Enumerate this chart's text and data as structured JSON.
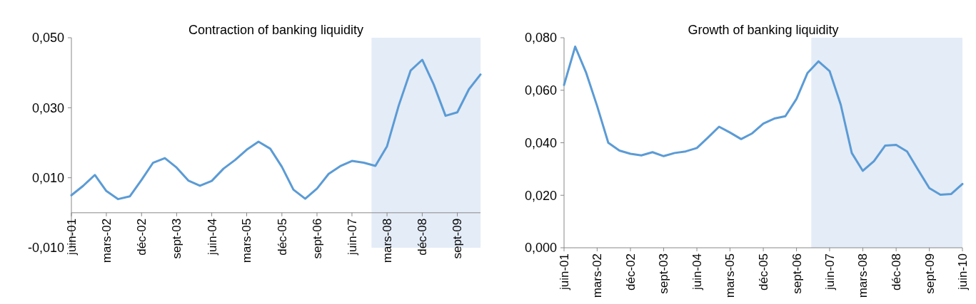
{
  "chart_data": [
    {
      "type": "line",
      "title": "Contraction of banking liquidity",
      "color": "#5b9bd5",
      "x": [
        "2001-06",
        "2001-09",
        "2001-12",
        "2002-03",
        "2002-06",
        "2002-09",
        "2002-12",
        "2003-03",
        "2003-06",
        "2003-09",
        "2003-12",
        "2004-03",
        "2004-06",
        "2004-09",
        "2004-12",
        "2005-03",
        "2005-06",
        "2005-09",
        "2005-12",
        "2006-03",
        "2006-06",
        "2006-09",
        "2006-12",
        "2007-03",
        "2007-06",
        "2007-09",
        "2007-12",
        "2008-03",
        "2008-06",
        "2008-09",
        "2008-12",
        "2009-03",
        "2009-06",
        "2009-09",
        "2009-12",
        "2010-03"
      ],
      "values": [
        0.005,
        0.0077,
        0.0108,
        0.0062,
        0.0039,
        0.0047,
        0.0094,
        0.0143,
        0.0156,
        0.0129,
        0.0092,
        0.0077,
        0.0091,
        0.0126,
        0.0151,
        0.018,
        0.0203,
        0.0183,
        0.0131,
        0.0066,
        0.004,
        0.0069,
        0.0111,
        0.0133,
        0.0148,
        0.0143,
        0.0134,
        0.019,
        0.0307,
        0.0406,
        0.0437,
        0.0366,
        0.0277,
        0.0287,
        0.0353,
        0.0395
      ],
      "xlim": [
        "2001-06",
        "2010-03"
      ],
      "xticks": [
        {
          "value": "2001-06",
          "label": "juin-01"
        },
        {
          "value": "2002-03",
          "label": "mars-02"
        },
        {
          "value": "2002-12",
          "label": "déc-02"
        },
        {
          "value": "2003-09",
          "label": "sept-03"
        },
        {
          "value": "2004-06",
          "label": "juin-04"
        },
        {
          "value": "2005-03",
          "label": "mars-05"
        },
        {
          "value": "2005-12",
          "label": "déc-05"
        },
        {
          "value": "2006-09",
          "label": "sept-06"
        },
        {
          "value": "2007-06",
          "label": "juin-07"
        },
        {
          "value": "2008-03",
          "label": "mars-08"
        },
        {
          "value": "2008-12",
          "label": "déc-08"
        },
        {
          "value": "2009-09",
          "label": "sept-09"
        }
      ],
      "ylim": [
        -0.01,
        0.05
      ],
      "yticks": [
        {
          "value": -0.01,
          "label": "-0,010"
        },
        {
          "value": 0.01,
          "label": "0,010"
        },
        {
          "value": 0.03,
          "label": "0,030"
        },
        {
          "value": 0.05,
          "label": "0,050"
        }
      ],
      "bands": [
        {
          "axis": "x",
          "from": "2007-11",
          "to": "2010-03",
          "color": "#e4ecf7"
        }
      ]
    },
    {
      "type": "line",
      "title": "Growth of banking liquidity",
      "color": "#5b9bd5",
      "x": [
        "2001-06",
        "2001-09",
        "2001-12",
        "2002-03",
        "2002-06",
        "2002-09",
        "2002-12",
        "2003-03",
        "2003-06",
        "2003-09",
        "2003-12",
        "2004-03",
        "2004-06",
        "2004-09",
        "2004-12",
        "2005-03",
        "2005-06",
        "2005-09",
        "2005-12",
        "2006-03",
        "2006-06",
        "2006-09",
        "2006-12",
        "2007-03",
        "2007-06",
        "2007-09",
        "2007-12",
        "2008-03",
        "2008-06",
        "2008-09",
        "2008-12",
        "2009-03",
        "2009-06",
        "2009-09",
        "2009-12",
        "2010-03",
        "2010-06"
      ],
      "values": [
        0.062,
        0.0766,
        0.0666,
        0.054,
        0.04,
        0.037,
        0.0358,
        0.0352,
        0.0364,
        0.0349,
        0.0361,
        0.0367,
        0.038,
        0.042,
        0.0461,
        0.0439,
        0.0414,
        0.0436,
        0.0473,
        0.0492,
        0.0501,
        0.0567,
        0.0666,
        0.071,
        0.0673,
        0.0545,
        0.0361,
        0.0293,
        0.033,
        0.0389,
        0.0392,
        0.0367,
        0.0296,
        0.0227,
        0.0202,
        0.0205,
        0.0243
      ],
      "xlim": [
        "2001-06",
        "2010-06"
      ],
      "xticks": [
        {
          "value": "2001-06",
          "label": "juin-01"
        },
        {
          "value": "2002-03",
          "label": "mars-02"
        },
        {
          "value": "2002-12",
          "label": "déc-02"
        },
        {
          "value": "2003-09",
          "label": "sept-03"
        },
        {
          "value": "2004-06",
          "label": "juin-04"
        },
        {
          "value": "2005-03",
          "label": "mars-05"
        },
        {
          "value": "2005-12",
          "label": "déc-05"
        },
        {
          "value": "2006-09",
          "label": "sept-06"
        },
        {
          "value": "2007-06",
          "label": "juin-07"
        },
        {
          "value": "2008-03",
          "label": "mars-08"
        },
        {
          "value": "2008-12",
          "label": "déc-08"
        },
        {
          "value": "2009-09",
          "label": "sept-09"
        },
        {
          "value": "2010-06",
          "label": "juin-10"
        }
      ],
      "ylim": [
        0,
        0.08
      ],
      "yticks": [
        {
          "value": 0,
          "label": "0,000"
        },
        {
          "value": 0.02,
          "label": "0,020"
        },
        {
          "value": 0.04,
          "label": "0,040"
        },
        {
          "value": 0.06,
          "label": "0,060"
        },
        {
          "value": 0.08,
          "label": "0,080"
        }
      ],
      "bands": [
        {
          "axis": "x",
          "from": "2007-01",
          "to": "2010-06",
          "color": "#e4ecf7"
        }
      ]
    }
  ]
}
